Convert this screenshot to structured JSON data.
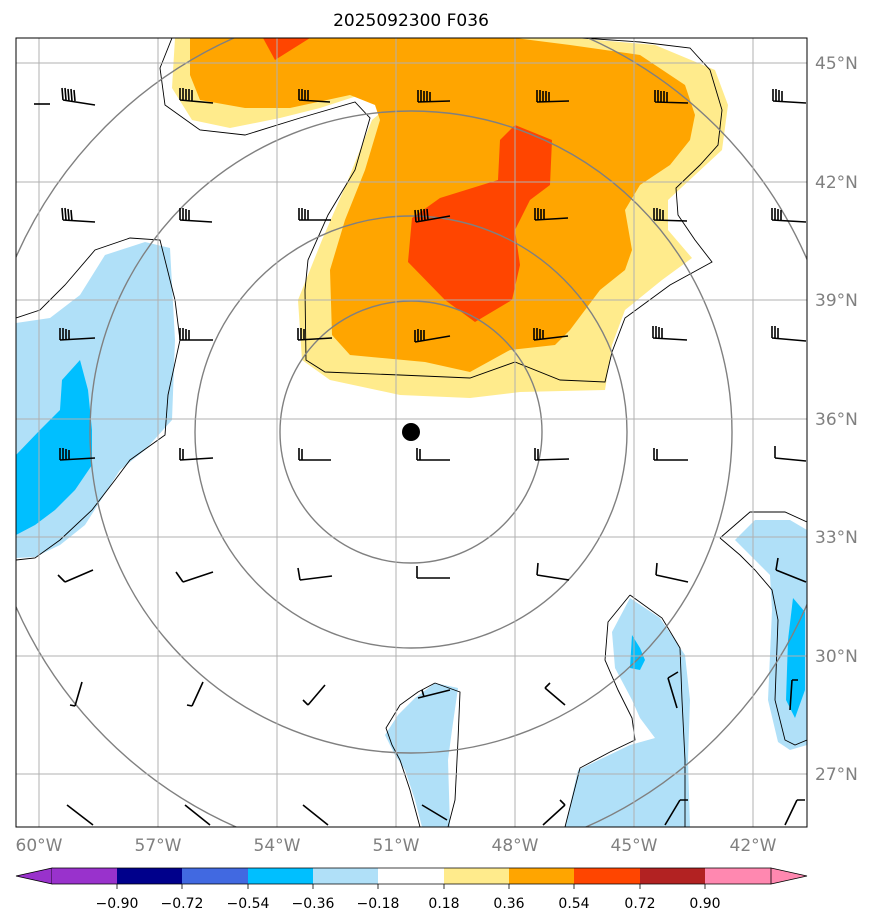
{
  "title": "2025092300 F036",
  "map": {
    "lon_range": [
      -60.9,
      -40.5
    ],
    "lat_range": [
      25.8,
      45.8
    ],
    "lat_ticks": [
      "45°N",
      "42°N",
      "39°N",
      "36°N",
      "33°N",
      "30°N",
      "27°N"
    ],
    "lon_ticks": [
      "60°W",
      "57°W",
      "54°W",
      "51°W",
      "48°W",
      "45°W",
      "42°W"
    ],
    "grid": true,
    "center_marker": {
      "lon": -50.6,
      "lat": 35.6,
      "color": "#000000"
    }
  },
  "colorbar": {
    "tick_labels": [
      "−0.90",
      "−0.72",
      "−0.54",
      "−0.36",
      "−0.18",
      "0.18",
      "0.36",
      "0.54",
      "0.72",
      "0.90"
    ],
    "colors": [
      "#9932cc",
      "#00008b",
      "#4169e1",
      "#00bfff",
      "#b0e0f8",
      "#ffffff",
      "#ffeb8c",
      "#ffa500",
      "#ff4500",
      "#b22222",
      "#ff88b0"
    ]
  }
}
